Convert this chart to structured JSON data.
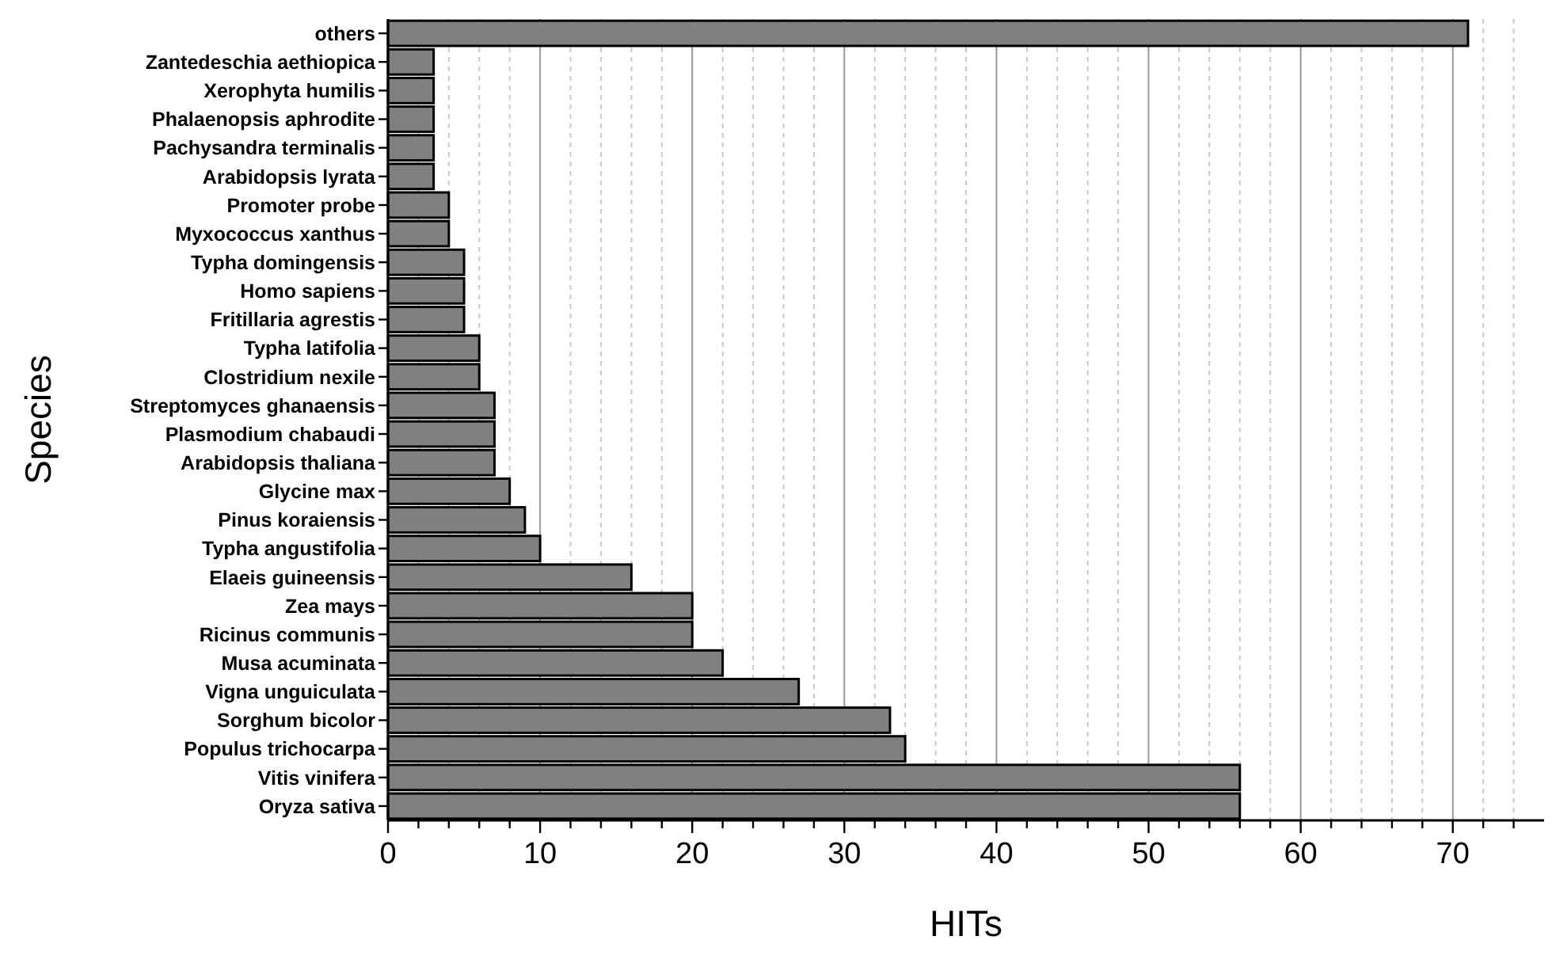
{
  "chart_data": {
    "type": "bar",
    "orientation": "horizontal",
    "xlabel": "HITs",
    "ylabel": "Species",
    "categories": [
      "others",
      "Zantedeschia aethiopica",
      "Xerophyta humilis",
      "Phalaenopsis aphrodite",
      "Pachysandra terminalis",
      "Arabidopsis lyrata",
      "Promoter probe",
      "Myxococcus xanthus",
      "Typha domingensis",
      "Homo sapiens",
      "Fritillaria agrestis",
      "Typha latifolia",
      "Clostridium nexile",
      "Streptomyces ghanaensis",
      "Plasmodium chabaudi",
      "Arabidopsis thaliana",
      "Glycine max",
      "Pinus koraiensis",
      "Typha angustifolia",
      "Elaeis guineensis",
      "Zea mays",
      "Ricinus communis",
      "Musa acuminata",
      "Vigna unguiculata",
      "Sorghum bicolor",
      "Populus trichocarpa",
      "Vitis vinifera",
      "Oryza sativa"
    ],
    "values": [
      71,
      3,
      3,
      3,
      3,
      3,
      4,
      4,
      5,
      5,
      5,
      6,
      6,
      7,
      7,
      7,
      8,
      9,
      10,
      16,
      20,
      20,
      22,
      27,
      33,
      34,
      56,
      56
    ],
    "color": "#808080",
    "xlim": [
      0,
      76
    ],
    "xticks": [
      0,
      {
        "value": 2,
        "label": null
      },
      {
        "value": 4,
        "label": null
      },
      {
        "value": 6,
        "label": null
      },
      {
        "value": 8,
        "label": null
      },
      10,
      {
        "value": 12,
        "label": null
      },
      {
        "value": 14,
        "label": null
      },
      {
        "value": 16,
        "label": null
      },
      {
        "value": 18,
        "label": null
      },
      20,
      {
        "value": 22,
        "label": null
      },
      {
        "value": 24,
        "label": null
      },
      {
        "value": 26,
        "label": null
      },
      {
        "value": 28,
        "label": null
      },
      30,
      {
        "value": 32,
        "label": null
      },
      {
        "value": 34,
        "label": null
      },
      {
        "value": 36,
        "label": null
      },
      {
        "value": 38,
        "label": null
      },
      40,
      {
        "value": 42,
        "label": null
      },
      {
        "value": 44,
        "label": null
      },
      {
        "value": 46,
        "label": null
      },
      {
        "value": 48,
        "label": null
      },
      50,
      {
        "value": 52,
        "label": null
      },
      {
        "value": 54,
        "label": null
      },
      {
        "value": 56,
        "label": null
      },
      {
        "value": 58,
        "label": null
      },
      60,
      {
        "value": 62,
        "label": null
      },
      {
        "value": 64,
        "label": null
      },
      {
        "value": 66,
        "label": null
      },
      {
        "value": 68,
        "label": null
      },
      70,
      {
        "value": 72,
        "label": null
      },
      {
        "value": 74,
        "label": null
      }
    ],
    "grid": "x"
  }
}
